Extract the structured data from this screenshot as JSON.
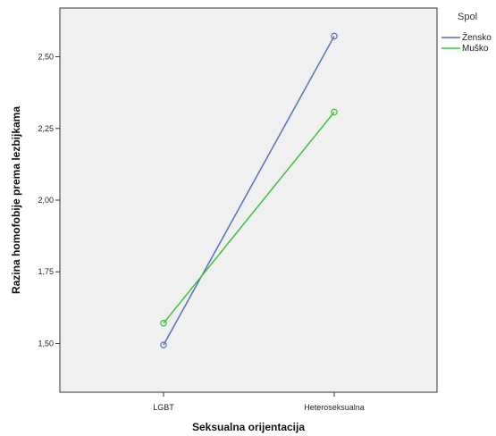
{
  "chart_data": {
    "type": "line",
    "title": "",
    "xlabel": "Seksualna orijentacija",
    "ylabel": "Razina homofobije prema lezbijkama",
    "categories": [
      "LGBT",
      "Heteroseksualna"
    ],
    "y_ticks": [
      "1,50",
      "1,75",
      "2,00",
      "2,25",
      "2,50"
    ],
    "ylim": [
      1.33,
      2.67
    ],
    "grid": false,
    "legend": {
      "title": "Spol",
      "position": "right-top"
    },
    "series": [
      {
        "name": "Žensko",
        "color": "#5a6fbd",
        "values": [
          1.495,
          2.572
        ]
      },
      {
        "name": "Muško",
        "color": "#3fbf3f",
        "values": [
          1.571,
          2.307
        ]
      }
    ],
    "plot_background": "#f0f0f0"
  }
}
